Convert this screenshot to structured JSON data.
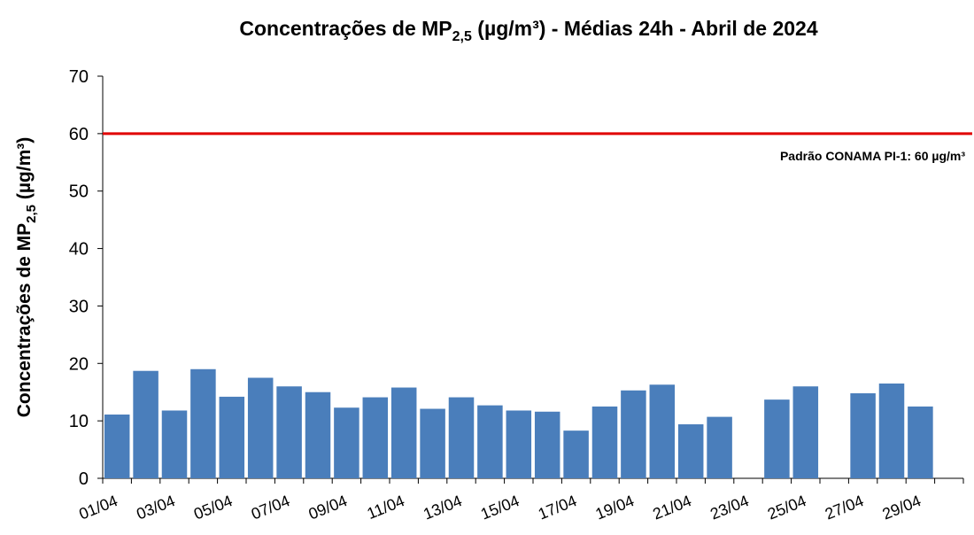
{
  "chart_data": {
    "type": "bar",
    "title": [
      "Concentrações de MP",
      "2,5",
      " (µg/m³) - Médias 24h - Abril de 2024"
    ],
    "ylabel": [
      "Concentrações de MP",
      "2,5",
      " (µg/m³)"
    ],
    "categories": [
      "01/04",
      null,
      "03/04",
      null,
      "05/04",
      null,
      "07/04",
      null,
      "09/04",
      null,
      "11/04",
      null,
      "13/04",
      null,
      "15/04",
      null,
      "17/04",
      null,
      "19/04",
      null,
      "21/04",
      null,
      "23/04",
      null,
      "25/04",
      null,
      "27/04",
      null,
      "29/04",
      null
    ],
    "values": [
      11.1,
      18.7,
      11.8,
      19.0,
      14.2,
      17.5,
      16.0,
      15.0,
      12.3,
      14.1,
      15.8,
      12.1,
      14.1,
      12.7,
      11.8,
      11.6,
      8.3,
      12.5,
      15.3,
      16.3,
      9.4,
      10.7,
      null,
      13.7,
      16.0,
      null,
      14.8,
      16.5,
      12.5,
      null
    ],
    "color": "#4a7ebb",
    "ylim": [
      0,
      70
    ],
    "yticks": [
      0,
      10,
      20,
      30,
      40,
      50,
      60,
      70
    ],
    "grid": false,
    "reference_line": {
      "value": 60,
      "label": "Padrão CONAMA PI-1: 60 µg/m³",
      "color": "#e00000"
    }
  }
}
